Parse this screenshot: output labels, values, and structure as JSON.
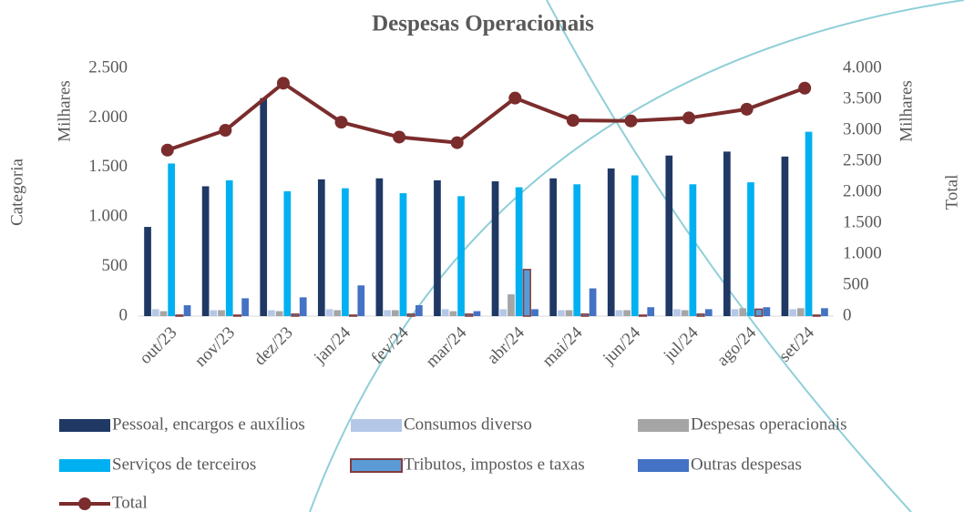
{
  "chart_data": {
    "type": "bar",
    "title": "Despesas Operacionais",
    "y_label": "Categoria",
    "y_unit": "Milhares",
    "y2_label": "Total",
    "y2_unit": "Milhares",
    "categories": [
      "out/23",
      "nov/23",
      "dez/23",
      "jan/24",
      "fev/24",
      "mar/24",
      "abr/24",
      "mai/24",
      "jun/24",
      "jul/24",
      "ago/24",
      "set/24"
    ],
    "series": [
      {
        "name": "Pessoal, encargos e auxílios",
        "color": "#1f3864",
        "values": [
          900,
          1310,
          2200,
          1380,
          1390,
          1370,
          1360,
          1390,
          1490,
          1620,
          1660,
          1610
        ]
      },
      {
        "name": "Consumos diverso",
        "color": "#b4c7e7",
        "values": [
          70,
          60,
          60,
          70,
          60,
          70,
          70,
          60,
          60,
          70,
          70,
          70
        ]
      },
      {
        "name": "Despesas operacionais",
        "color": "#a5a5a5",
        "values": [
          50,
          60,
          50,
          60,
          60,
          50,
          220,
          60,
          60,
          60,
          80,
          80
        ]
      },
      {
        "name": "Serviços de terceiros",
        "color": "#00b0f0",
        "values": [
          1540,
          1370,
          1260,
          1290,
          1240,
          1210,
          1300,
          1330,
          1420,
          1330,
          1350,
          1860
        ]
      },
      {
        "name": "Tributos, impostos e taxas",
        "color": "#5b9bd5",
        "edgecolor": "#843c3c",
        "values": [
          10,
          10,
          20,
          10,
          20,
          20,
          470,
          20,
          10,
          20,
          70,
          10
        ]
      },
      {
        "name": "Outras despesas",
        "color": "#4472c4",
        "values": [
          110,
          180,
          190,
          310,
          110,
          50,
          70,
          280,
          90,
          70,
          90,
          80
        ]
      },
      {
        "name": "Total",
        "type": "line",
        "axis": "y2",
        "color": "#7b2c2c",
        "values": [
          2680,
          3000,
          3760,
          3130,
          2890,
          2800,
          3520,
          3160,
          3150,
          3200,
          3340,
          3680
        ]
      }
    ],
    "ylim": [
      0,
      2500
    ],
    "yticks": [
      0,
      500,
      {
        "value": 1000,
        "label": "1.000"
      },
      {
        "value": 1500,
        "label": "1.500"
      },
      {
        "value": 2000,
        "label": "2.000"
      },
      {
        "value": 2500,
        "label": "2.500"
      }
    ],
    "y2lim": [
      0,
      4000
    ],
    "y2ticks": [
      0,
      500,
      {
        "value": 1000,
        "label": "1.000"
      },
      {
        "value": 1500,
        "label": "1.500"
      },
      {
        "value": 2000,
        "label": "2.000"
      },
      {
        "value": 2500,
        "label": "2.500"
      },
      {
        "value": 3000,
        "label": "3.000"
      },
      {
        "value": 3500,
        "label": "3.500"
      },
      {
        "value": 4000,
        "label": "4.000"
      }
    ],
    "grid": false
  }
}
